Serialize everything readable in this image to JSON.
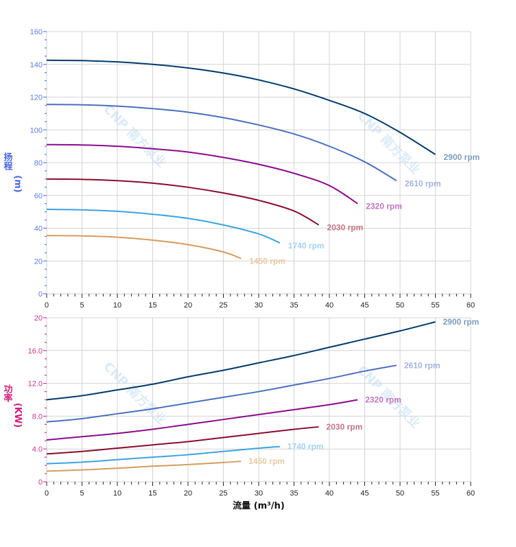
{
  "watermark": "CNP 南方泵业",
  "chart_data": [
    {
      "type": "line",
      "ylabel_main": "扬程",
      "ylabel_unit": "(m)",
      "ylim": [
        0,
        160
      ],
      "yticks": [
        "0",
        "20",
        "40",
        "60",
        "80",
        "100",
        "120",
        "140",
        "160"
      ],
      "xlim": [
        0,
        60
      ],
      "xticks": [
        "0",
        "5",
        "10",
        "15",
        "20",
        "25",
        "30",
        "35",
        "40",
        "45",
        "50",
        "55",
        "60"
      ],
      "grid": true,
      "axis_color": "#5b7cf0",
      "series": [
        {
          "name": "2900 rpm",
          "color": "#003a6b",
          "label_color": "#7d9dc0",
          "x": [
            0,
            5,
            10,
            15,
            20,
            25,
            30,
            35,
            40,
            45,
            50,
            55
          ],
          "y": [
            142.5,
            142.3,
            141.5,
            140,
            137.8,
            134.7,
            130.5,
            125,
            118,
            110,
            98.5,
            85
          ]
        },
        {
          "name": "2610 rpm",
          "color": "#4a6fbf",
          "label_color": "#a3b3e2",
          "x": [
            0,
            5,
            10,
            15,
            20,
            25,
            30,
            35,
            40,
            45,
            49.5
          ],
          "y": [
            115.5,
            115.3,
            114.5,
            113,
            110.8,
            107.5,
            103,
            97.5,
            90,
            80.5,
            69
          ]
        },
        {
          "name": "2320 rpm",
          "color": "#8b0a8b",
          "label_color": "#c274c2",
          "x": [
            0,
            5,
            10,
            15,
            20,
            25,
            30,
            35,
            40,
            44
          ],
          "y": [
            91,
            90.8,
            90,
            88.5,
            86.5,
            83.2,
            79,
            73.5,
            66,
            55
          ]
        },
        {
          "name": "2030 rpm",
          "color": "#8b0a2e",
          "label_color": "#c27585",
          "x": [
            0,
            5,
            10,
            15,
            20,
            25,
            30,
            35,
            38.5
          ],
          "y": [
            70,
            69.8,
            69,
            67.5,
            65,
            61.5,
            57,
            50.5,
            42
          ]
        },
        {
          "name": "1740 rpm",
          "color": "#3aa3e0",
          "label_color": "#a2d2f2",
          "x": [
            0,
            5,
            10,
            15,
            20,
            25,
            30,
            33
          ],
          "y": [
            51.5,
            51.2,
            50.3,
            48.5,
            46,
            42,
            36.5,
            31
          ]
        },
        {
          "name": "1450 rpm",
          "color": "#d49c5c",
          "label_color": "#e9c9a2",
          "x": [
            0,
            5,
            10,
            15,
            20,
            25,
            27.5
          ],
          "y": [
            35.5,
            35.3,
            34.5,
            32.7,
            30,
            25.5,
            21.5
          ]
        }
      ]
    },
    {
      "type": "line",
      "ylabel_main": "功率",
      "ylabel_unit": "(KW)",
      "ylim": [
        0,
        20
      ],
      "yticks": [
        "0",
        "4.0",
        "8.0",
        "12.0",
        "16.0",
        "20"
      ],
      "xlim": [
        0,
        60
      ],
      "xticks": [
        "0",
        "5",
        "10",
        "15",
        "20",
        "25",
        "30",
        "35",
        "40",
        "45",
        "50",
        "55",
        "60"
      ],
      "xlabel": "流量 (m³/h)",
      "grid": true,
      "axis_color": "#d0358f",
      "series": [
        {
          "name": "2900 rpm",
          "color": "#003a6b",
          "label_color": "#7d9dc0",
          "x": [
            0,
            5,
            10,
            15,
            20,
            25,
            30,
            35,
            40,
            45,
            50,
            55
          ],
          "y": [
            10,
            10.5,
            11.2,
            11.9,
            12.8,
            13.6,
            14.5,
            15.4,
            16.4,
            17.4,
            18.4,
            19.5
          ]
        },
        {
          "name": "2610 rpm",
          "color": "#4a6fbf",
          "label_color": "#a3b3e2",
          "x": [
            0,
            5,
            10,
            15,
            20,
            25,
            30,
            35,
            40,
            45,
            49.5
          ],
          "y": [
            7.3,
            7.7,
            8.3,
            8.9,
            9.6,
            10.3,
            11,
            11.8,
            12.6,
            13.5,
            14.2
          ]
        },
        {
          "name": "2320 rpm",
          "color": "#8b0a8b",
          "label_color": "#c274c2",
          "x": [
            0,
            5,
            10,
            15,
            20,
            25,
            30,
            35,
            40,
            44
          ],
          "y": [
            5.1,
            5.5,
            5.9,
            6.4,
            7,
            7.6,
            8.2,
            8.8,
            9.4,
            10
          ]
        },
        {
          "name": "2030 rpm",
          "color": "#8b0a2e",
          "label_color": "#c27585",
          "x": [
            0,
            5,
            10,
            15,
            20,
            25,
            30,
            35,
            38.5
          ],
          "y": [
            3.4,
            3.7,
            4.1,
            4.5,
            4.9,
            5.4,
            5.9,
            6.4,
            6.7
          ]
        },
        {
          "name": "1740 rpm",
          "color": "#3aa3e0",
          "label_color": "#a2d2f2",
          "x": [
            0,
            5,
            10,
            15,
            20,
            25,
            30,
            33
          ],
          "y": [
            2.2,
            2.4,
            2.7,
            3,
            3.3,
            3.7,
            4.1,
            4.3
          ]
        },
        {
          "name": "1450 rpm",
          "color": "#d49c5c",
          "label_color": "#e9c9a2",
          "x": [
            0,
            5,
            10,
            15,
            20,
            25,
            27.5
          ],
          "y": [
            1.3,
            1.45,
            1.65,
            1.9,
            2.1,
            2.35,
            2.5
          ]
        }
      ]
    }
  ]
}
